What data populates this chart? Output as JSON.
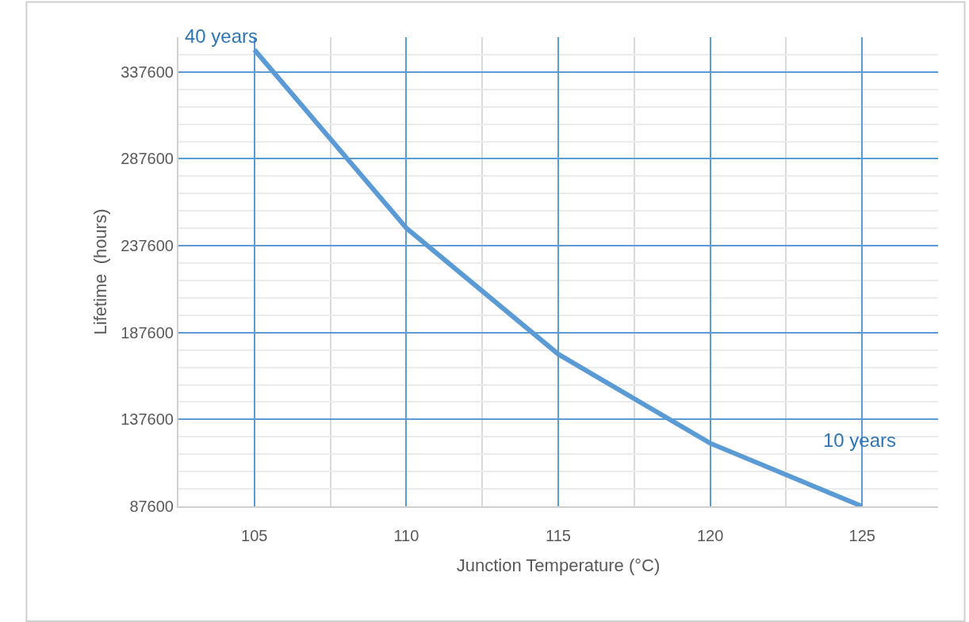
{
  "chart_data": {
    "type": "line",
    "xlabel": "Junction Temperature (°C)",
    "ylabel": "Lifetime  (hours)",
    "x": [
      105,
      110,
      115,
      120,
      125
    ],
    "series": [
      {
        "color": "#5b9bd5",
        "values": [
          350400,
          247800,
          175200,
          123900,
          87600
        ]
      }
    ],
    "xlim": [
      102.5,
      127.5
    ],
    "xticks": [
      105,
      110,
      115,
      120,
      125
    ],
    "ylim": [
      87600,
      357600
    ],
    "yticks": [
      87600,
      137600,
      187600,
      237600,
      287600,
      337600
    ],
    "grid": true,
    "marker": "none",
    "line_style": "solid",
    "annotations": [
      {
        "text": "40 years",
        "x": 105,
        "y": 350400
      },
      {
        "text": "10 years",
        "x": 125,
        "y": 87600
      }
    ]
  }
}
